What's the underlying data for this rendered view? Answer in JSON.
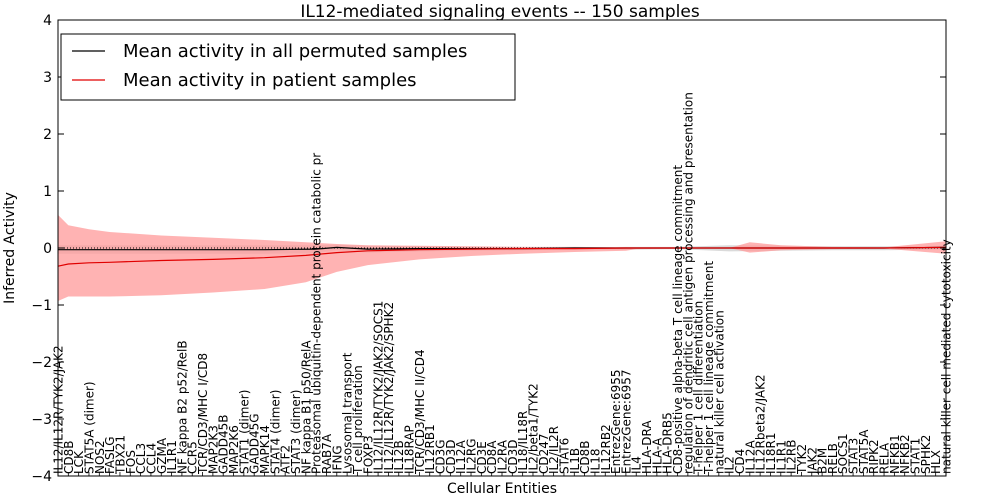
{
  "chart_data": {
    "type": "line",
    "title": "IL12-mediated signaling events -- 150 samples",
    "xlabel": "Cellular Entities",
    "ylabel": "Inferred Activity",
    "ylim": [
      -4,
      4
    ],
    "yticks": [
      -4,
      -3,
      -2,
      -1,
      0,
      1,
      2,
      3,
      4
    ],
    "legend_position": "top-left",
    "colors": {
      "permuted_line": "#000000",
      "patient_line": "#e00000",
      "patient_band": "#ff9999",
      "permuted_band": "#bbbbbb",
      "axes": "#000000"
    },
    "entities": [
      "IL12/IL12R/TYK2/JAK2",
      "CD8B",
      "LCK",
      "STAT5A (dimer)",
      "NOS2",
      "FASLG",
      "TBX21",
      "FOS",
      "CCL3",
      "CCL4",
      "GZMA",
      "IL1R1",
      "NF kappa B2 p52/RelB",
      "CCR5",
      "TCR/CD3/MHC I/CD8",
      "MAP2K3",
      "GADD45B",
      "MAP2K6",
      "STAT1 (dimer)",
      "GADD45G",
      "MAPK14",
      "STAT4 (dimer)",
      "ATF2",
      "STAT3 (dimer)",
      "NF kappa B1 p50/RelA",
      "Proteasomal ubiquitin-dependent protein catabolic pr",
      "RAB7A",
      "IFNG",
      "Lysosomal transport",
      "T cell proliferation",
      "FOXP3",
      "IL12/IL12R/TYK2/JAK2/SOCS1",
      "IL12/IL12R/TYK2/JAK2/SPHK2",
      "IL12B",
      "IL18RAP",
      "TCR/CD3/MHC II/CD4",
      "IL12RB1",
      "CD3G",
      "CD3D",
      "IL12A",
      "IL2RG",
      "CD3E",
      "CD8A",
      "IL2RA",
      "CD3D",
      "IL18/IL18R",
      "IL2/beta1/TYK2",
      "CD247",
      "IL2/IL2R",
      "STAT6",
      "IL1B",
      "CD8B",
      "IL18",
      "IL12RB2",
      "EntrezGene:6955",
      "EntrezGene:6957",
      "IL4",
      "HLA-DRA",
      "HLA-A",
      "HLA-DRB5",
      "CD8-positive alpha-beta T cell lineage commitment",
      "regulation of dendritic cell antigen processing and presentation",
      "T-helper 1 cell differentiation",
      "T-helper 1 cell lineage commitment",
      "natural killer cell activation",
      "IL2",
      "CD4",
      "IL12A",
      "IL12Rbeta2/JAK2",
      "IL18R1",
      "IL1R1",
      "IL2RB",
      "TYK2",
      "JAK2",
      "B2M",
      "RELB",
      "SOCS1",
      "STAT3",
      "STAT5A",
      "RIPK2",
      "RELA",
      "NFKB1",
      "NFKB2",
      "STAT1",
      "SPHK2",
      "HLX",
      "natural killer cell mediated cytotoxicity"
    ],
    "series": [
      {
        "name": "Mean activity in all permuted samples",
        "x": [
          0,
          5,
          10,
          15,
          20,
          25,
          27,
          30,
          35,
          40,
          45,
          50,
          55,
          60,
          65,
          70,
          75,
          80,
          86
        ],
        "mean": [
          -0.03,
          -0.03,
          -0.03,
          -0.03,
          -0.03,
          -0.02,
          0.01,
          -0.02,
          -0.01,
          -0.01,
          -0.01,
          0.0,
          0.0,
          0.0,
          0.0,
          0.0,
          0.0,
          0.0,
          0.01
        ],
        "upper": [
          0.05,
          0.05,
          0.05,
          0.05,
          0.05,
          0.05,
          0.06,
          0.04,
          0.03,
          0.02,
          0.02,
          0.01,
          0.02,
          0.02,
          0.05,
          0.04,
          0.03,
          0.03,
          0.04
        ],
        "lower": [
          -0.1,
          -0.1,
          -0.1,
          -0.1,
          -0.1,
          -0.09,
          -0.04,
          -0.08,
          -0.06,
          -0.05,
          -0.04,
          -0.02,
          -0.03,
          -0.02,
          -0.06,
          -0.05,
          -0.04,
          -0.04,
          -0.02
        ]
      },
      {
        "name": "Mean activity in patient samples",
        "x": [
          0,
          1,
          3,
          5,
          10,
          15,
          20,
          24,
          27,
          30,
          35,
          40,
          45,
          50,
          55,
          56,
          60,
          65,
          67,
          70,
          75,
          80,
          86
        ],
        "mean": [
          -0.32,
          -0.28,
          -0.26,
          -0.25,
          -0.22,
          -0.2,
          -0.17,
          -0.13,
          -0.08,
          -0.05,
          -0.03,
          -0.02,
          -0.01,
          -0.01,
          0.0,
          0.0,
          0.0,
          0.0,
          0.0,
          0.0,
          0.0,
          0.0,
          0.01
        ],
        "upper": [
          0.58,
          0.4,
          0.33,
          0.28,
          0.22,
          0.18,
          0.14,
          0.1,
          0.07,
          0.05,
          0.04,
          0.03,
          0.02,
          0.02,
          0.01,
          0.0,
          0.0,
          0.0,
          0.1,
          0.05,
          0.02,
          0.01,
          0.12
        ],
        "lower": [
          -0.93,
          -0.85,
          -0.85,
          -0.85,
          -0.83,
          -0.78,
          -0.72,
          -0.6,
          -0.42,
          -0.3,
          -0.2,
          -0.14,
          -0.1,
          -0.07,
          -0.05,
          -0.02,
          -0.01,
          0.0,
          -0.08,
          -0.04,
          -0.02,
          -0.01,
          -0.1
        ]
      }
    ]
  }
}
